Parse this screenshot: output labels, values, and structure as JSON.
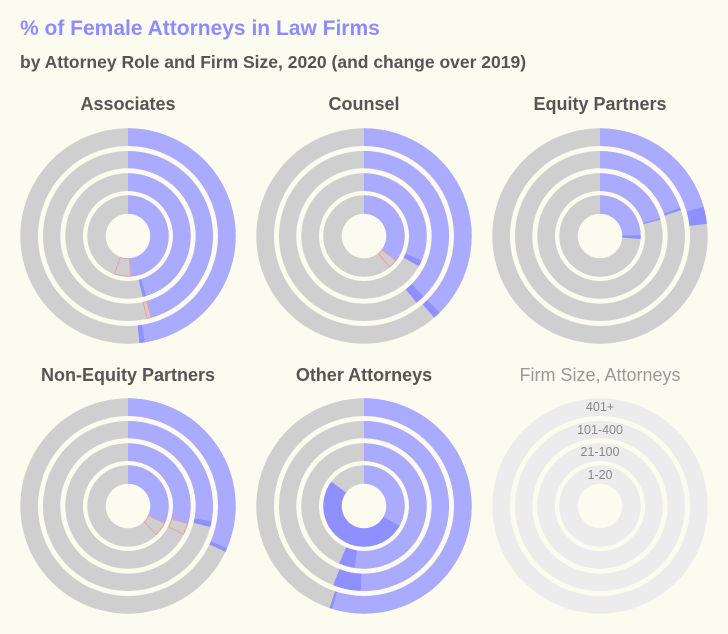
{
  "title": "% of Female Attorneys in Law Firms",
  "subtitle": "by Attorney Role and Firm Size, 2020 (and change over 2019)",
  "colors": {
    "base": "#aaaaff",
    "increase": "#8f8fff",
    "decrease_outline": "#f0a0a0",
    "remainder": "#cfcfcf",
    "legend_ring": "#ececec",
    "background": "#fcfbef"
  },
  "chart_data": {
    "type": "radial-ring",
    "ring_order_inner_to_outer": [
      "1-20",
      "21-100",
      "101-400",
      "401+"
    ],
    "legend": {
      "title": "Firm Size, Attorneys",
      "labels": [
        "401+",
        "101-400",
        "21-100",
        "1-20"
      ]
    },
    "panels": [
      {
        "title": "Associates",
        "rings": [
          {
            "size": "1-20",
            "v2019": 55.5,
            "v2020": 49.0
          },
          {
            "size": "21-100",
            "v2019": 45.3,
            "v2020": 46.2
          },
          {
            "size": "101-400",
            "v2019": 46.4,
            "v2020": 45.6
          },
          {
            "size": "401+",
            "v2019": 47.5,
            "v2020": 48.3
          }
        ]
      },
      {
        "title": "Counsel",
        "rings": [
          {
            "size": "1-20",
            "v2019": 39.0,
            "v2020": 35.5
          },
          {
            "size": "21-100",
            "v2019": 31.4,
            "v2020": 33.0
          },
          {
            "size": "101-400",
            "v2019": 37.6,
            "v2020": 39.4
          },
          {
            "size": "401+",
            "v2019": 37.6,
            "v2020": 38.7
          }
        ]
      },
      {
        "title": "Equity Partners",
        "rings": [
          {
            "size": "1-20",
            "v2019": 24.6,
            "v2020": 26.2
          },
          {
            "size": "21-100",
            "v2019": 20.4,
            "v2020": 20.8
          },
          {
            "size": "101-400",
            "v2019": 19.6,
            "v2020": 20.1
          },
          {
            "size": "401+",
            "v2019": 20.6,
            "v2020": 23.2
          }
        ]
      },
      {
        "title": "Non-Equity Partners",
        "rings": [
          {
            "size": "1-20",
            "v2019": 37.5,
            "v2020": 32.0
          },
          {
            "size": "21-100",
            "v2019": 32.5,
            "v2020": 29.6
          },
          {
            "size": "101-400",
            "v2019": 27.9,
            "v2020": 29.0
          },
          {
            "size": "401+",
            "v2019": 31.4,
            "v2020": 32.0
          }
        ]
      },
      {
        "title": "Other Attorneys",
        "rings": [
          {
            "size": "1-20",
            "v2019": 33.0,
            "v2020": 85.2
          },
          {
            "size": "21-100",
            "v2019": 52.4,
            "v2020": 56.5
          },
          {
            "size": "101-400",
            "v2019": 50.6,
            "v2020": 55.9
          },
          {
            "size": "401+",
            "v2019": 54.8,
            "v2020": 55.2
          }
        ]
      }
    ]
  }
}
